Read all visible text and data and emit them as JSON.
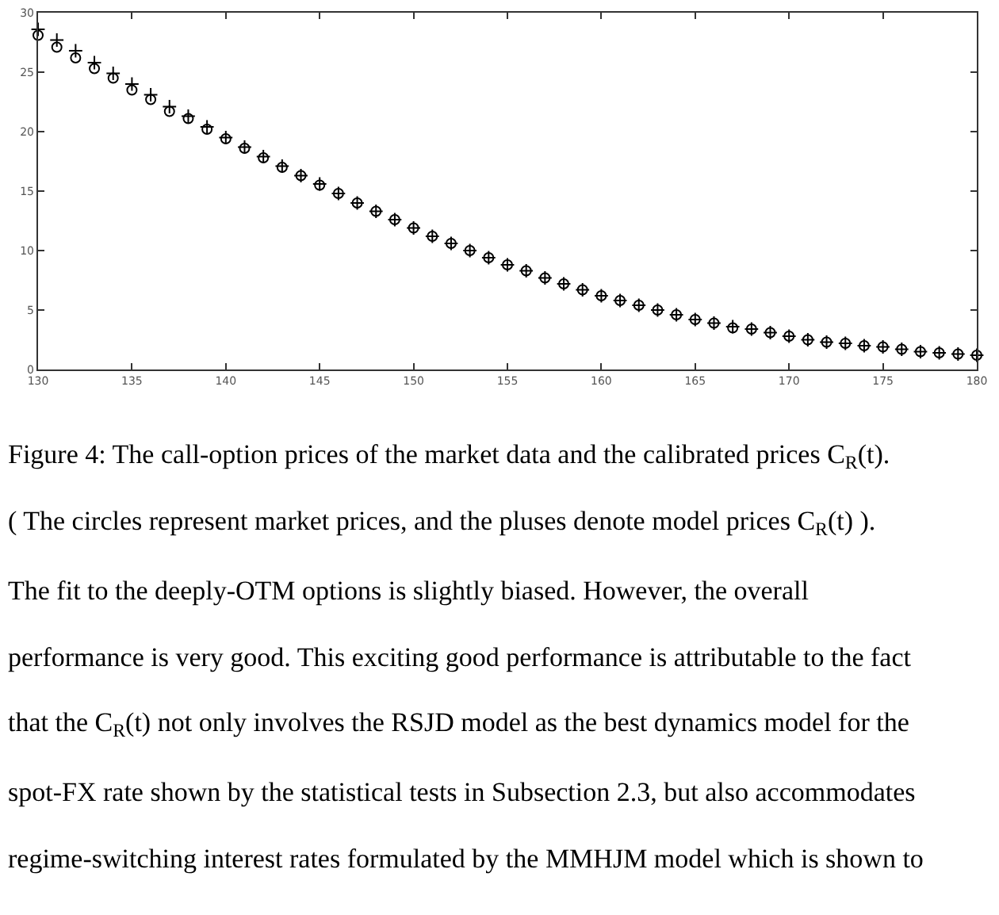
{
  "chart_data": {
    "type": "scatter",
    "x": [
      130,
      131,
      132,
      133,
      134,
      135,
      136,
      137,
      138,
      139,
      140,
      141,
      142,
      143,
      144,
      145,
      146,
      147,
      148,
      149,
      150,
      151,
      152,
      153,
      154,
      155,
      156,
      157,
      158,
      159,
      160,
      161,
      162,
      163,
      164,
      165,
      166,
      167,
      168,
      169,
      170,
      171,
      172,
      173,
      174,
      175,
      176,
      177,
      178,
      179,
      180
    ],
    "series": [
      {
        "color": "#000000",
        "marker": "circle",
        "values": [
          28.1,
          27.1,
          26.2,
          25.3,
          24.5,
          23.5,
          22.7,
          21.7,
          21.1,
          20.2,
          19.4,
          18.6,
          17.8,
          17.0,
          16.3,
          15.5,
          14.8,
          14.0,
          13.3,
          12.6,
          11.9,
          11.2,
          10.6,
          10.0,
          9.4,
          8.8,
          8.3,
          7.7,
          7.2,
          6.7,
          6.2,
          5.8,
          5.4,
          5.0,
          4.6,
          4.2,
          3.9,
          3.5,
          3.4,
          3.1,
          2.8,
          2.5,
          2.3,
          2.2,
          2.0,
          1.9,
          1.7,
          1.5,
          1.4,
          1.3,
          1.2
        ]
      },
      {
        "color": "#000000",
        "marker": "cross",
        "values": [
          28.6,
          27.7,
          26.8,
          25.8,
          24.9,
          24.0,
          23.1,
          22.1,
          21.3,
          20.4,
          19.5,
          18.7,
          17.9,
          17.1,
          16.3,
          15.6,
          14.8,
          14.0,
          13.3,
          12.6,
          11.9,
          11.2,
          10.6,
          10.0,
          9.4,
          8.8,
          8.3,
          7.7,
          7.2,
          6.7,
          6.2,
          5.8,
          5.4,
          5.0,
          4.6,
          4.2,
          3.9,
          3.6,
          3.4,
          3.1,
          2.8,
          2.5,
          2.3,
          2.2,
          2.0,
          1.9,
          1.7,
          1.5,
          1.4,
          1.3,
          1.2
        ]
      }
    ],
    "xlim": [
      130,
      180
    ],
    "ylim": [
      0,
      30
    ],
    "xticks": [
      130,
      135,
      140,
      145,
      150,
      155,
      160,
      165,
      170,
      175,
      180
    ],
    "yticks": [
      0,
      5,
      10,
      15,
      20,
      25,
      30
    ],
    "annotations": [
      "Figure 4: The call-option prices of the market data and the calibrated prices C$_{R}$(t).",
      "( The circles represent market prices, and the pluses denote model prices C$_{R}$(t) ).",
      "The fit to the deeply-OTM options is slightly biased. However, the overall",
      "performance is very good. This exciting good performance is attributable to the fact",
      "that the C$_{R}$(t) not only involves the RSJD model as the best dynamics model for the",
      "spot-FX rate shown by the statistical tests in Subsection 2.3, but also accommodates",
      "regime-switching interest rates formulated by the MMHJM model which is shown to"
    ]
  }
}
